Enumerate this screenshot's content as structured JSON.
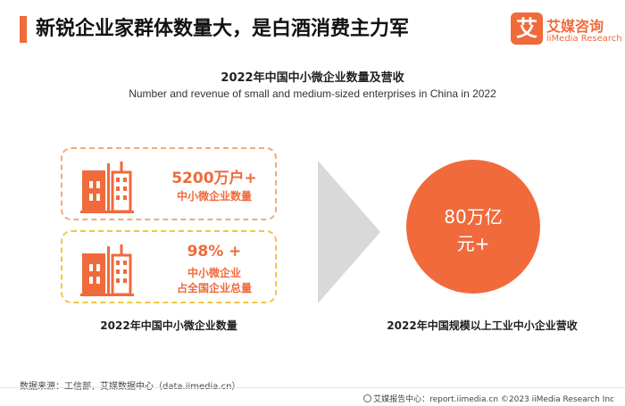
{
  "header": {
    "title": "新锐企业家群体数量大，是白酒消费主力军",
    "logo_mark": "艾",
    "logo_cn": "艾媒咨询",
    "logo_en": "iiMedia Research"
  },
  "chart": {
    "title_cn": "2022年中国中小微企业数量及营收",
    "title_en": "Number and revenue of small and medium-sized enterprises in China in 2022"
  },
  "cards": [
    {
      "big": "5200万户+",
      "lines": [
        "中小微企业数量"
      ]
    },
    {
      "big": "98% +",
      "lines": [
        "中小微企业",
        "占全国企业总量"
      ]
    }
  ],
  "left_caption": "2022年中国中小微企业数量",
  "circle": {
    "line1": "80万亿",
    "line2": "元+"
  },
  "right_caption": "2022年中国规模以上工业中小企业营收",
  "footer": {
    "source": "数据来源：工信部，艾媒数据中心（data.iimedia.cn）",
    "right": "艾媒报告中心：report.iimedia.cn  ©2023  iiMedia Research  Inc"
  },
  "colors": {
    "accent": "#f06a3b",
    "card1_border": "#f4a87c",
    "card2_border": "#f4c542",
    "arrow": "#d9d9d9"
  },
  "icons": [
    "building-icon",
    "chevron-arrow-icon"
  ]
}
